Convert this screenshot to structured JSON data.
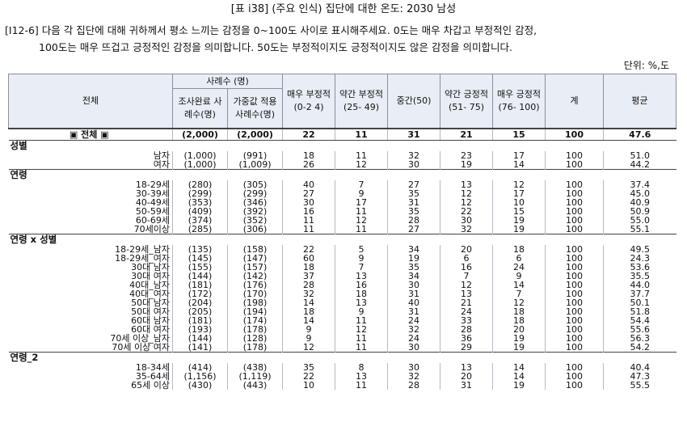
{
  "title": "[표 i38] (주요 인식) 집단에 대한 온도: 2030 남성",
  "question": {
    "line1": "[I12-6] 다음 각 집단에 대해 귀하께서 평소 느끼는 감정을 0~100도 사이로 표시해주세요. 0도는 매우 차갑고 부정적인 감정,",
    "line2": "100도는 매우 뜨겁고 긍정적인 감정을 의미합니다. 50도는 부정적이지도 긍정적이지도 않은 감정을 의미합니다."
  },
  "unit": "단위: %,도",
  "header": {
    "label": "전체",
    "sample_group": "사례수 (명)",
    "n_survey": "조사완료 사례수(명)",
    "n_weighted": "가중값 적용 사례수(명)",
    "c1": "매우 부정적(0-2 4)",
    "c2": "약간 부정적(25- 49)",
    "c3": "중간(50)",
    "c4": "약간 긍정적(51- 75)",
    "c5": "매우 긍정적(76- 100)",
    "total": "계",
    "avg": "평균"
  },
  "total_row": {
    "label": "▣ 전체 ▣",
    "n1": "(2,000)",
    "n2": "(2,000)",
    "v": [
      "22",
      "11",
      "31",
      "21",
      "15",
      "100",
      "47.6"
    ]
  },
  "groups": [
    {
      "name": "성별",
      "rows": [
        {
          "label": "남자",
          "n1": "(1,000)",
          "n2": "(991)",
          "v": [
            "18",
            "11",
            "32",
            "23",
            "17",
            "100",
            "51.0"
          ]
        },
        {
          "label": "여자",
          "n1": "(1,000)",
          "n2": "(1,009)",
          "v": [
            "26",
            "12",
            "30",
            "19",
            "14",
            "100",
            "44.2"
          ]
        }
      ]
    },
    {
      "name": "연령",
      "rows": [
        {
          "label": "18-29세",
          "n1": "(280)",
          "n2": "(305)",
          "v": [
            "40",
            "7",
            "27",
            "13",
            "12",
            "100",
            "37.4"
          ]
        },
        {
          "label": "30-39세",
          "n1": "(299)",
          "n2": "(299)",
          "v": [
            "27",
            "9",
            "35",
            "12",
            "17",
            "100",
            "45.0"
          ]
        },
        {
          "label": "40-49세",
          "n1": "(353)",
          "n2": "(346)",
          "v": [
            "30",
            "17",
            "31",
            "12",
            "10",
            "100",
            "40.9"
          ]
        },
        {
          "label": "50-59세",
          "n1": "(409)",
          "n2": "(392)",
          "v": [
            "16",
            "11",
            "35",
            "22",
            "15",
            "100",
            "50.9"
          ]
        },
        {
          "label": "60-69세",
          "n1": "(374)",
          "n2": "(352)",
          "v": [
            "11",
            "12",
            "28",
            "30",
            "19",
            "100",
            "55.0"
          ]
        },
        {
          "label": "70세이상",
          "n1": "(285)",
          "n2": "(306)",
          "v": [
            "11",
            "11",
            "27",
            "32",
            "19",
            "100",
            "55.1"
          ]
        }
      ]
    },
    {
      "name": "연령 x 성별",
      "rows": [
        {
          "label": "18-29세_남자",
          "n1": "(135)",
          "n2": "(158)",
          "v": [
            "22",
            "5",
            "34",
            "20",
            "18",
            "100",
            "49.5"
          ]
        },
        {
          "label": "18-29세_여자",
          "n1": "(145)",
          "n2": "(147)",
          "v": [
            "60",
            "9",
            "19",
            "6",
            "6",
            "100",
            "24.3"
          ]
        },
        {
          "label": "30대 남자",
          "n1": "(155)",
          "n2": "(157)",
          "v": [
            "18",
            "7",
            "35",
            "16",
            "24",
            "100",
            "53.6"
          ]
        },
        {
          "label": "30대 여자",
          "n1": "(144)",
          "n2": "(142)",
          "v": [
            "37",
            "13",
            "34",
            "7",
            "9",
            "100",
            "35.5"
          ]
        },
        {
          "label": "40대_남자",
          "n1": "(181)",
          "n2": "(176)",
          "v": [
            "28",
            "16",
            "30",
            "12",
            "14",
            "100",
            "44.0"
          ]
        },
        {
          "label": "40대_여자",
          "n1": "(172)",
          "n2": "(170)",
          "v": [
            "32",
            "18",
            "31",
            "13",
            "7",
            "100",
            "37.7"
          ]
        },
        {
          "label": "50대 남자",
          "n1": "(204)",
          "n2": "(198)",
          "v": [
            "14",
            "13",
            "40",
            "21",
            "12",
            "100",
            "50.1"
          ]
        },
        {
          "label": "50대 여자",
          "n1": "(205)",
          "n2": "(194)",
          "v": [
            "18",
            "9",
            "31",
            "24",
            "18",
            "100",
            "51.8"
          ]
        },
        {
          "label": "60대 남자",
          "n1": "(181)",
          "n2": "(174)",
          "v": [
            "14",
            "11",
            "24",
            "33",
            "18",
            "100",
            "54.4"
          ]
        },
        {
          "label": "60대 여자",
          "n1": "(193)",
          "n2": "(178)",
          "v": [
            "9",
            "12",
            "32",
            "28",
            "20",
            "100",
            "55.6"
          ]
        },
        {
          "label": "70세 이상_남자",
          "n1": "(144)",
          "n2": "(128)",
          "v": [
            "9",
            "11",
            "24",
            "36",
            "19",
            "100",
            "56.3"
          ]
        },
        {
          "label": "70세 이상 여자",
          "n1": "(141)",
          "n2": "(178)",
          "v": [
            "12",
            "11",
            "30",
            "29",
            "19",
            "100",
            "54.2"
          ]
        }
      ]
    },
    {
      "name": "연령_2",
      "rows": [
        {
          "label": "18-34세",
          "n1": "(414)",
          "n2": "(438)",
          "v": [
            "35",
            "8",
            "30",
            "13",
            "14",
            "100",
            "40.4"
          ]
        },
        {
          "label": "35-64세",
          "n1": "(1,156)",
          "n2": "(1,119)",
          "v": [
            "22",
            "13",
            "32",
            "20",
            "14",
            "100",
            "47.3"
          ]
        },
        {
          "label": "65세 이상",
          "n1": "(430)",
          "n2": "(443)",
          "v": [
            "10",
            "11",
            "28",
            "31",
            "19",
            "100",
            "55.5"
          ]
        }
      ]
    }
  ]
}
